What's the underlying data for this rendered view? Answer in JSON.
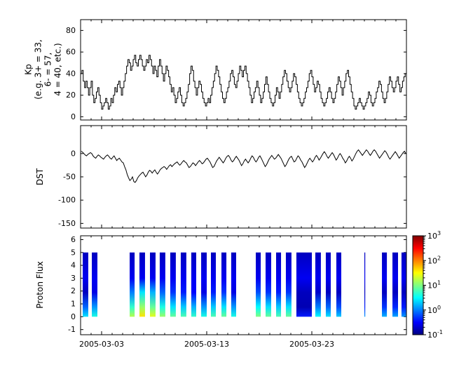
{
  "figure": {
    "background": "#ffffff"
  },
  "x_axis": {
    "start_date": "2005-03-01",
    "range_days": [
      0,
      31
    ],
    "minor_tick_days": 1,
    "ticks": [
      {
        "day": 2,
        "label": "2005-03-03"
      },
      {
        "day": 12,
        "label": "2005-03-13"
      },
      {
        "day": 22,
        "label": "2005-03-23"
      }
    ]
  },
  "chart_data": [
    {
      "type": "line",
      "name": "kp-index",
      "drawstyle": "steps",
      "ylabel_lines": [
        "Kp",
        "(e.g. 3+ = 33,",
        "6- = 57,",
        "4 = 40, etc.)"
      ],
      "ylim": [
        -3,
        90
      ],
      "yticks": [
        0,
        20,
        40,
        60,
        80
      ],
      "samples_per_day": 8,
      "line_color": "#000000",
      "values": [
        40,
        43,
        33,
        27,
        33,
        27,
        20,
        27,
        33,
        20,
        13,
        17,
        23,
        27,
        20,
        13,
        7,
        10,
        13,
        17,
        13,
        7,
        10,
        17,
        13,
        20,
        27,
        23,
        30,
        33,
        27,
        20,
        27,
        33,
        40,
        47,
        53,
        50,
        43,
        47,
        53,
        57,
        50,
        47,
        53,
        57,
        53,
        47,
        43,
        47,
        53,
        50,
        57,
        53,
        47,
        40,
        47,
        43,
        37,
        47,
        53,
        47,
        40,
        33,
        40,
        47,
        43,
        37,
        30,
        23,
        27,
        20,
        13,
        17,
        23,
        27,
        20,
        13,
        10,
        13,
        17,
        23,
        30,
        40,
        47,
        43,
        33,
        27,
        20,
        27,
        33,
        30,
        23,
        17,
        13,
        10,
        13,
        17,
        13,
        20,
        27,
        33,
        40,
        47,
        43,
        37,
        30,
        23,
        17,
        13,
        17,
        23,
        27,
        33,
        40,
        43,
        37,
        30,
        27,
        33,
        40,
        47,
        43,
        37,
        43,
        47,
        40,
        33,
        27,
        20,
        13,
        17,
        23,
        27,
        33,
        27,
        20,
        13,
        17,
        23,
        30,
        37,
        30,
        23,
        17,
        13,
        10,
        13,
        20,
        27,
        23,
        17,
        23,
        30,
        37,
        43,
        40,
        33,
        27,
        23,
        27,
        33,
        40,
        37,
        30,
        23,
        17,
        13,
        10,
        13,
        17,
        23,
        27,
        33,
        40,
        43,
        37,
        30,
        23,
        27,
        33,
        30,
        23,
        17,
        13,
        10,
        13,
        17,
        23,
        27,
        23,
        17,
        13,
        17,
        23,
        30,
        37,
        33,
        27,
        20,
        27,
        33,
        40,
        43,
        37,
        30,
        23,
        17,
        10,
        7,
        10,
        13,
        17,
        13,
        10,
        7,
        10,
        13,
        17,
        23,
        20,
        13,
        10,
        13,
        17,
        23,
        27,
        33,
        30,
        23,
        17,
        13,
        17,
        23,
        30,
        37,
        33,
        27,
        23,
        27,
        33,
        37,
        30,
        23,
        27,
        33,
        37,
        40
      ]
    },
    {
      "type": "line",
      "name": "dst-index",
      "ylabel": "DST",
      "ylim": [
        -160,
        60
      ],
      "yticks": [
        0,
        -50,
        -100,
        -150
      ],
      "samples_per_day": 8,
      "line_color": "#000000",
      "values": [
        5,
        3,
        0,
        -3,
        -5,
        -2,
        0,
        2,
        0,
        -5,
        -8,
        -10,
        -6,
        -3,
        -5,
        -8,
        -10,
        -12,
        -8,
        -5,
        -3,
        -6,
        -10,
        -12,
        -8,
        -5,
        -10,
        -15,
        -12,
        -10,
        -14,
        -18,
        -20,
        -28,
        -35,
        -45,
        -52,
        -58,
        -55,
        -50,
        -60,
        -62,
        -58,
        -52,
        -48,
        -45,
        -42,
        -40,
        -45,
        -50,
        -46,
        -40,
        -36,
        -38,
        -42,
        -38,
        -35,
        -40,
        -44,
        -40,
        -35,
        -32,
        -30,
        -28,
        -30,
        -34,
        -30,
        -26,
        -24,
        -28,
        -25,
        -22,
        -20,
        -18,
        -22,
        -25,
        -22,
        -18,
        -15,
        -18,
        -20,
        -25,
        -30,
        -28,
        -24,
        -20,
        -22,
        -26,
        -22,
        -18,
        -15,
        -18,
        -22,
        -20,
        -16,
        -12,
        -10,
        -14,
        -18,
        -24,
        -30,
        -28,
        -22,
        -16,
        -12,
        -8,
        -12,
        -16,
        -20,
        -16,
        -10,
        -6,
        -4,
        -8,
        -14,
        -18,
        -15,
        -10,
        -6,
        -10,
        -14,
        -20,
        -26,
        -22,
        -16,
        -12,
        -16,
        -20,
        -16,
        -10,
        -5,
        -8,
        -14,
        -18,
        -14,
        -8,
        -5,
        -10,
        -16,
        -22,
        -28,
        -24,
        -18,
        -12,
        -8,
        -4,
        -8,
        -12,
        -10,
        -6,
        -2,
        -6,
        -10,
        -16,
        -22,
        -28,
        -24,
        -18,
        -12,
        -8,
        -6,
        -12,
        -18,
        -16,
        -10,
        -5,
        -8,
        -14,
        -18,
        -24,
        -30,
        -26,
        -20,
        -14,
        -10,
        -14,
        -18,
        -14,
        -8,
        -4,
        -8,
        -14,
        -10,
        -5,
        0,
        4,
        0,
        -6,
        -10,
        -6,
        -2,
        2,
        -2,
        -8,
        -14,
        -10,
        -4,
        0,
        -4,
        -10,
        -14,
        -20,
        -16,
        -10,
        -6,
        -10,
        -16,
        -12,
        -6,
        0,
        5,
        8,
        4,
        0,
        -4,
        0,
        4,
        8,
        5,
        0,
        -4,
        0,
        5,
        8,
        5,
        0,
        -5,
        -10,
        -6,
        -2,
        2,
        6,
        3,
        -2,
        -8,
        -12,
        -8,
        -4,
        0,
        4,
        0,
        -5,
        -10,
        -6,
        -2,
        2,
        5,
        0
      ]
    },
    {
      "type": "heatmap",
      "name": "proton-flux",
      "ylabel": "Proton Flux",
      "ylim": [
        -1.4,
        6.3
      ],
      "yticks": [
        -1,
        0,
        1,
        2,
        3,
        4,
        5,
        6
      ],
      "bar_y_extent": [
        0,
        5
      ],
      "colormap": "jet",
      "colorbar": {
        "scale": "log10",
        "vmin_exponent": -1,
        "vmax_exponent": 3,
        "tick_exponents": [
          3,
          2,
          1,
          0,
          -1
        ]
      },
      "bars": [
        {
          "day": 0.2,
          "width": 0.53,
          "log10_flux_bottom": 0.4
        },
        {
          "day": 1.07,
          "width": 0.53,
          "log10_flux_bottom": 0.6
        },
        {
          "day": 4.67,
          "width": 0.47,
          "log10_flux_bottom": 1.2
        },
        {
          "day": 5.6,
          "width": 0.53,
          "log10_flux_bottom": 1.6
        },
        {
          "day": 6.6,
          "width": 0.53,
          "log10_flux_bottom": 1.4
        },
        {
          "day": 7.53,
          "width": 0.53,
          "log10_flux_bottom": 1.1
        },
        {
          "day": 8.53,
          "width": 0.53,
          "log10_flux_bottom": 0.9
        },
        {
          "day": 9.53,
          "width": 0.53,
          "log10_flux_bottom": 0.8
        },
        {
          "day": 10.53,
          "width": 0.47,
          "log10_flux_bottom": 0.7
        },
        {
          "day": 11.47,
          "width": 0.53,
          "log10_flux_bottom": 0.6
        },
        {
          "day": 12.4,
          "width": 0.47,
          "log10_flux_bottom": 0.8
        },
        {
          "day": 13.4,
          "width": 0.47,
          "log10_flux_bottom": 0.9
        },
        {
          "day": 14.33,
          "width": 0.47,
          "log10_flux_bottom": 0.6
        },
        {
          "day": 16.67,
          "width": 0.47,
          "log10_flux_bottom": 1.0
        },
        {
          "day": 17.6,
          "width": 0.53,
          "log10_flux_bottom": 0.9
        },
        {
          "day": 18.6,
          "width": 0.47,
          "log10_flux_bottom": 0.8
        },
        {
          "day": 19.53,
          "width": 0.53,
          "log10_flux_bottom": 0.9
        },
        {
          "day": 20.53,
          "width": 1.47,
          "log10_flux_bottom": -0.4
        },
        {
          "day": 22.33,
          "width": 0.53,
          "log10_flux_bottom": 0.5
        },
        {
          "day": 23.33,
          "width": 0.47,
          "log10_flux_bottom": 0.4
        },
        {
          "day": 24.33,
          "width": 0.47,
          "log10_flux_bottom": 0.3
        },
        {
          "day": 27.0,
          "width": 0.08,
          "log10_flux_bottom": 0.1
        },
        {
          "day": 28.67,
          "width": 0.47,
          "log10_flux_bottom": 0.2
        },
        {
          "day": 29.67,
          "width": 0.53,
          "log10_flux_bottom": 0.15
        },
        {
          "day": 30.53,
          "width": 0.47,
          "log10_flux_bottom": 0.1
        }
      ]
    }
  ]
}
